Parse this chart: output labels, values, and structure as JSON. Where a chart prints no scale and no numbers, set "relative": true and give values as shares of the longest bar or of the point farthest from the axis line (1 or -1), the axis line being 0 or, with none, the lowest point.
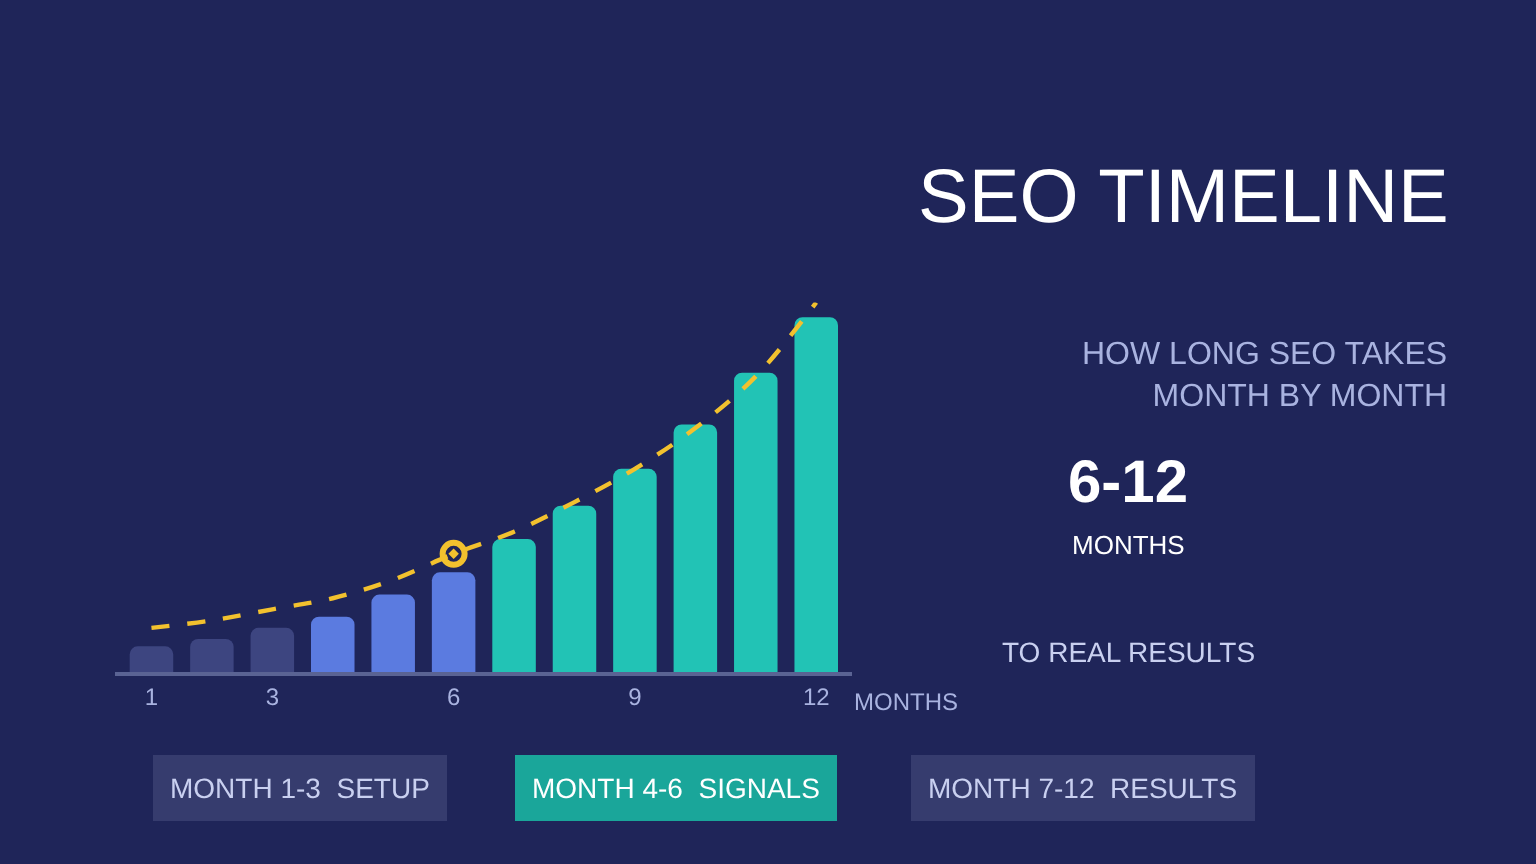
{
  "chart_data": {
    "type": "bar",
    "title": "SEO TIMELINE",
    "subtitle": "HOW LONG SEO TAKES\nMONTH BY MONTH",
    "xlabel": "MONTHS",
    "categories": [
      "1",
      null,
      "3",
      null,
      null,
      "6",
      null,
      null,
      "9",
      null,
      null,
      "12"
    ],
    "relative": true,
    "tick_labels": "x",
    "series": [
      {
        "values": [
          0.07,
          0.09,
          0.12,
          0.15,
          0.21,
          0.27,
          0.36,
          0.45,
          0.55,
          0.67,
          0.81,
          0.96
        ],
        "colors": [
          "#3d4580",
          "#3d4580",
          "#3d4580",
          "#5b7be0",
          "#5b7be0",
          "#5b7be0",
          "#22c3b5",
          "#22c3b5",
          "#22c3b5",
          "#22c3b5",
          "#22c3b5",
          "#22c3b5"
        ]
      },
      {
        "type": "line",
        "color": "#f2c12e",
        "line_style": "dashed",
        "values": [
          0.12,
          0.14,
          0.17,
          0.2,
          0.25,
          0.32,
          0.38,
          0.46,
          0.55,
          0.66,
          0.8,
          1.0
        ]
      },
      {
        "type": "scatter",
        "color": "#f2c12e",
        "marker": "circle",
        "values": [
          null,
          null,
          null,
          null,
          null,
          0.32,
          null,
          null,
          null,
          null,
          null,
          null
        ]
      }
    ],
    "annotations": [
      "6-12",
      "MONTHS",
      "TO REAL RESULTS",
      "MONTH 1-3  SETUP",
      "MONTH 4-6  SIGNALS",
      "MONTH 7-12  RESULTS"
    ]
  }
}
